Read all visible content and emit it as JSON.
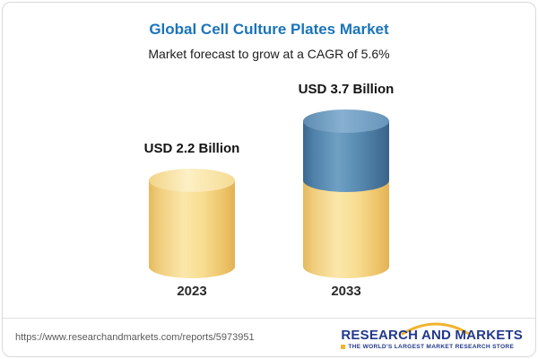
{
  "chart_data": {
    "type": "bar",
    "variant": "cylinder",
    "title": "Global Cell Culture Plates Market",
    "subtitle": "Market forecast to grow at a CAGR of 5.6%",
    "categories": [
      "2023",
      "2033"
    ],
    "totals": [
      2.2,
      3.7
    ],
    "series": [
      {
        "name": "blue-top-segment",
        "color": "#4f81a9",
        "values": [
          0,
          1.5
        ]
      },
      {
        "name": "yellow-base-segment",
        "color": "#f3d583",
        "values": [
          2.2,
          2.2
        ]
      }
    ],
    "value_labels": [
      "USD 2.2 Billion",
      "USD 3.7 Billion"
    ],
    "unit": "USD Billion",
    "ylim": [
      0,
      3.7
    ],
    "legend": "none",
    "grid": "off"
  },
  "colors": {
    "title_blue": "#1b74bb",
    "bar_yellow": "#f3d583",
    "bar_blue": "#4f81a9",
    "logo_navy": "#23388d",
    "logo_gold": "#f0b32c"
  },
  "footer": {
    "url": "https://www.researchandmarkets.com/reports/5973951",
    "logo_text": "RESEARCH AND MARKETS",
    "tagline": "THE WORLD'S LARGEST MARKET RESEARCH STORE"
  }
}
